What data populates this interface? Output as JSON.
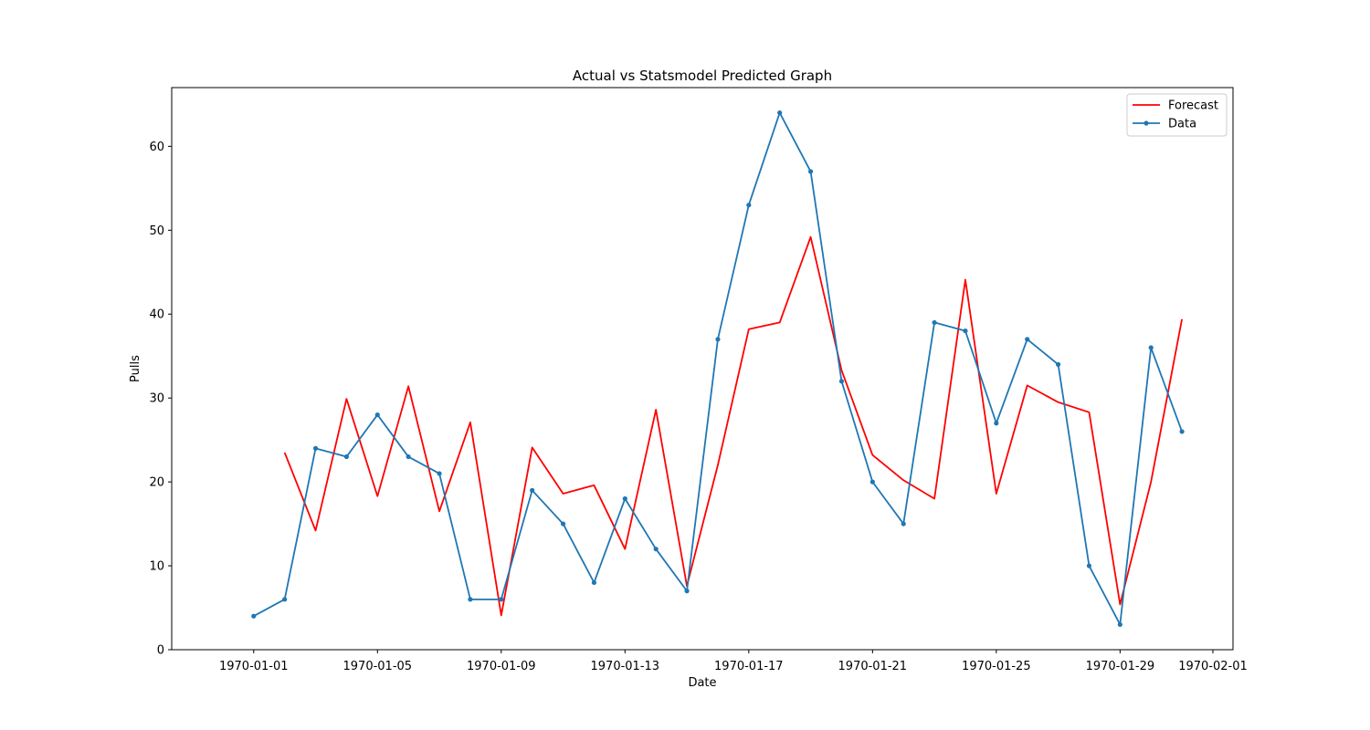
{
  "chart_data": {
    "type": "line",
    "title": "Actual vs Statsmodel Predicted Graph",
    "xlabel": "Date",
    "ylabel": "Pulls",
    "x_tick_labels": [
      "1970-01-01",
      "1970-01-05",
      "1970-01-09",
      "1970-01-13",
      "1970-01-17",
      "1970-01-21",
      "1970-01-25",
      "1970-01-29",
      "1970-02-01"
    ],
    "x_ticks": [
      "1970-01-01",
      "1970-01-05",
      "1970-01-09",
      "1970-01-13",
      "1970-01-17",
      "1970-01-21",
      "1970-01-25",
      "1970-01-29",
      "1970-02-01"
    ],
    "y_ticks": [
      0,
      10,
      20,
      30,
      40,
      50,
      60
    ],
    "xlim": [
      "1969-12-30",
      "1970-02-01"
    ],
    "ylim": [
      0,
      67
    ],
    "grid": false,
    "legend_position": "top-right",
    "series": [
      {
        "name": "Forecast",
        "color": "#ff0000",
        "marker": "none",
        "x": [
          "1970-01-02",
          "1970-01-03",
          "1970-01-04",
          "1970-01-05",
          "1970-01-06",
          "1970-01-07",
          "1970-01-08",
          "1970-01-09",
          "1970-01-10",
          "1970-01-11",
          "1970-01-12",
          "1970-01-13",
          "1970-01-14",
          "1970-01-15",
          "1970-01-16",
          "1970-01-17",
          "1970-01-18",
          "1970-01-19",
          "1970-01-20",
          "1970-01-21",
          "1970-01-22",
          "1970-01-23",
          "1970-01-24",
          "1970-01-25",
          "1970-01-26",
          "1970-01-27",
          "1970-01-28",
          "1970-01-29",
          "1970-01-30",
          "1970-01-31"
        ],
        "values": [
          23.5,
          14.2,
          29.9,
          18.3,
          31.4,
          16.5,
          27.1,
          4.1,
          24.1,
          18.6,
          19.6,
          12.0,
          28.6,
          7.6,
          22.0,
          38.2,
          39.0,
          49.2,
          33.3,
          23.2,
          20.2,
          18.0,
          44.1,
          18.6,
          31.5,
          29.5,
          28.3,
          5.4,
          20.0,
          39.4
        ]
      },
      {
        "name": "Data",
        "color": "#1f77b4",
        "marker": "circle",
        "x": [
          "1970-01-01",
          "1970-01-02",
          "1970-01-03",
          "1970-01-04",
          "1970-01-05",
          "1970-01-06",
          "1970-01-07",
          "1970-01-08",
          "1970-01-09",
          "1970-01-10",
          "1970-01-11",
          "1970-01-12",
          "1970-01-13",
          "1970-01-14",
          "1970-01-15",
          "1970-01-16",
          "1970-01-17",
          "1970-01-18",
          "1970-01-19",
          "1970-01-20",
          "1970-01-21",
          "1970-01-22",
          "1970-01-23",
          "1970-01-24",
          "1970-01-25",
          "1970-01-26",
          "1970-01-27",
          "1970-01-28",
          "1970-01-29",
          "1970-01-30",
          "1970-01-31"
        ],
        "values": [
          4,
          6,
          24,
          23,
          28,
          23,
          21,
          6,
          6,
          19,
          15,
          8,
          18,
          12,
          7,
          37,
          53,
          64,
          57,
          32,
          20,
          15,
          39,
          38,
          27,
          37,
          34,
          10,
          3,
          36,
          26
        ]
      }
    ]
  }
}
